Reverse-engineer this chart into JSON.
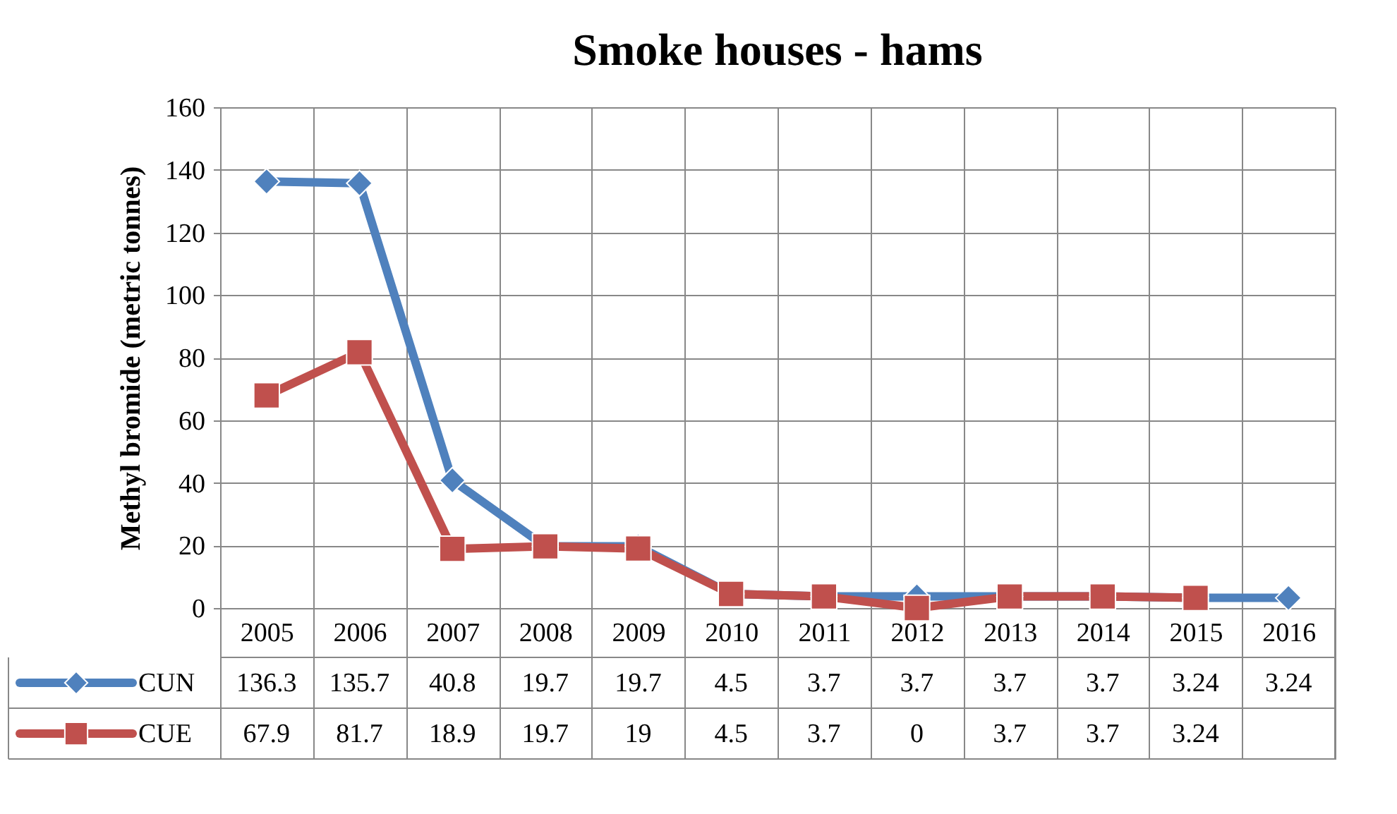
{
  "chart_data": {
    "type": "line",
    "title": "Smoke houses - hams",
    "ylabel": "Methyl bromide (metric tonnes)",
    "categories": [
      "2005",
      "2006",
      "2007",
      "2008",
      "2009",
      "2010",
      "2011",
      "2012",
      "2013",
      "2014",
      "2015",
      "2016"
    ],
    "series": [
      {
        "name": "CUN",
        "color": "#4f81bd",
        "marker": "diamond",
        "values": [
          136.3,
          135.7,
          40.8,
          19.7,
          19.7,
          4.5,
          3.7,
          3.7,
          3.7,
          3.7,
          3.24,
          3.24
        ]
      },
      {
        "name": "CUE",
        "color": "#c0504d",
        "marker": "square",
        "values": [
          67.9,
          81.7,
          18.9,
          19.7,
          19,
          4.5,
          3.7,
          0,
          3.7,
          3.7,
          3.24,
          null
        ]
      }
    ],
    "ylim": [
      0,
      160
    ],
    "yticks": [
      0,
      20,
      40,
      60,
      80,
      100,
      120,
      140,
      160
    ],
    "grid": true,
    "legend": "bottom",
    "data_labels": true,
    "line_style": "solid"
  }
}
